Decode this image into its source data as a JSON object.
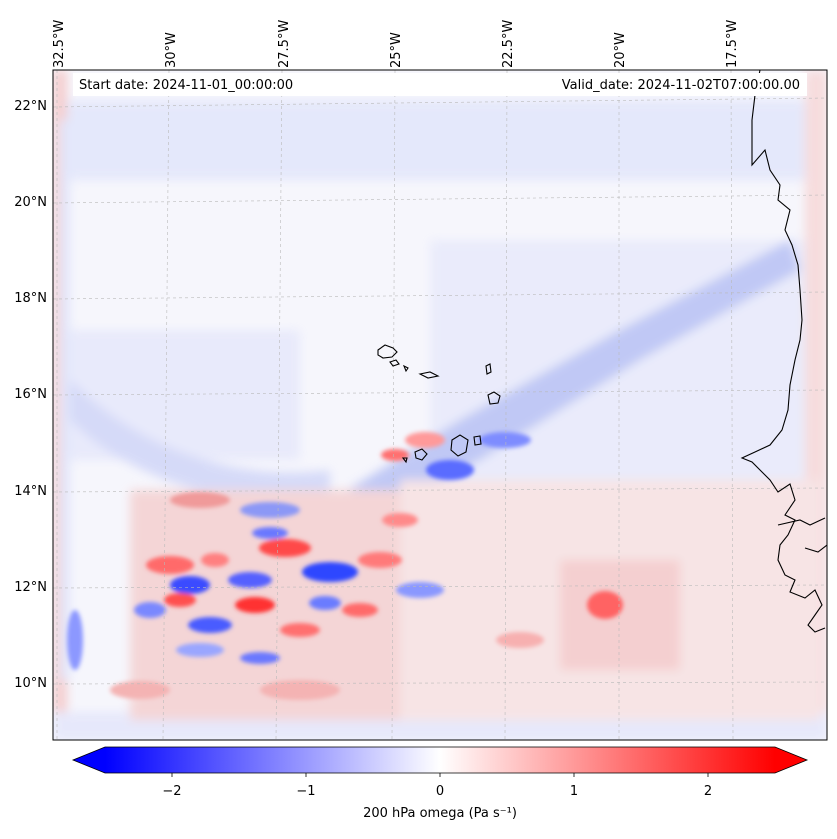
{
  "map": {
    "lon_labels": [
      "32.5°W",
      "30°W",
      "27.5°W",
      "25°W",
      "22.5°W",
      "20°W",
      "17.5°W"
    ],
    "lat_labels": [
      "22°N",
      "20°N",
      "18°N",
      "16°N",
      "14°N",
      "12°N",
      "10°N"
    ],
    "start_date": "Start date: 2024-11-01_00:00:00",
    "valid_date": "Valid_date: 2024-11-02T07:00:00.00",
    "gridlines": "dashed",
    "coastline_color": "#000000"
  },
  "colorbar": {
    "cmap": "bwr",
    "min": -2.5,
    "max": 2.5,
    "extend": "both",
    "ticks": [
      "−2",
      "−1",
      "0",
      "1",
      "2"
    ],
    "tick_values": [
      -2,
      -1,
      0,
      1,
      2
    ],
    "label": "200 hPa omega (Pa s⁻¹)",
    "colors": {
      "negative": "#0000ff",
      "zero": "#ffffff",
      "positive": "#ff0000"
    }
  }
}
